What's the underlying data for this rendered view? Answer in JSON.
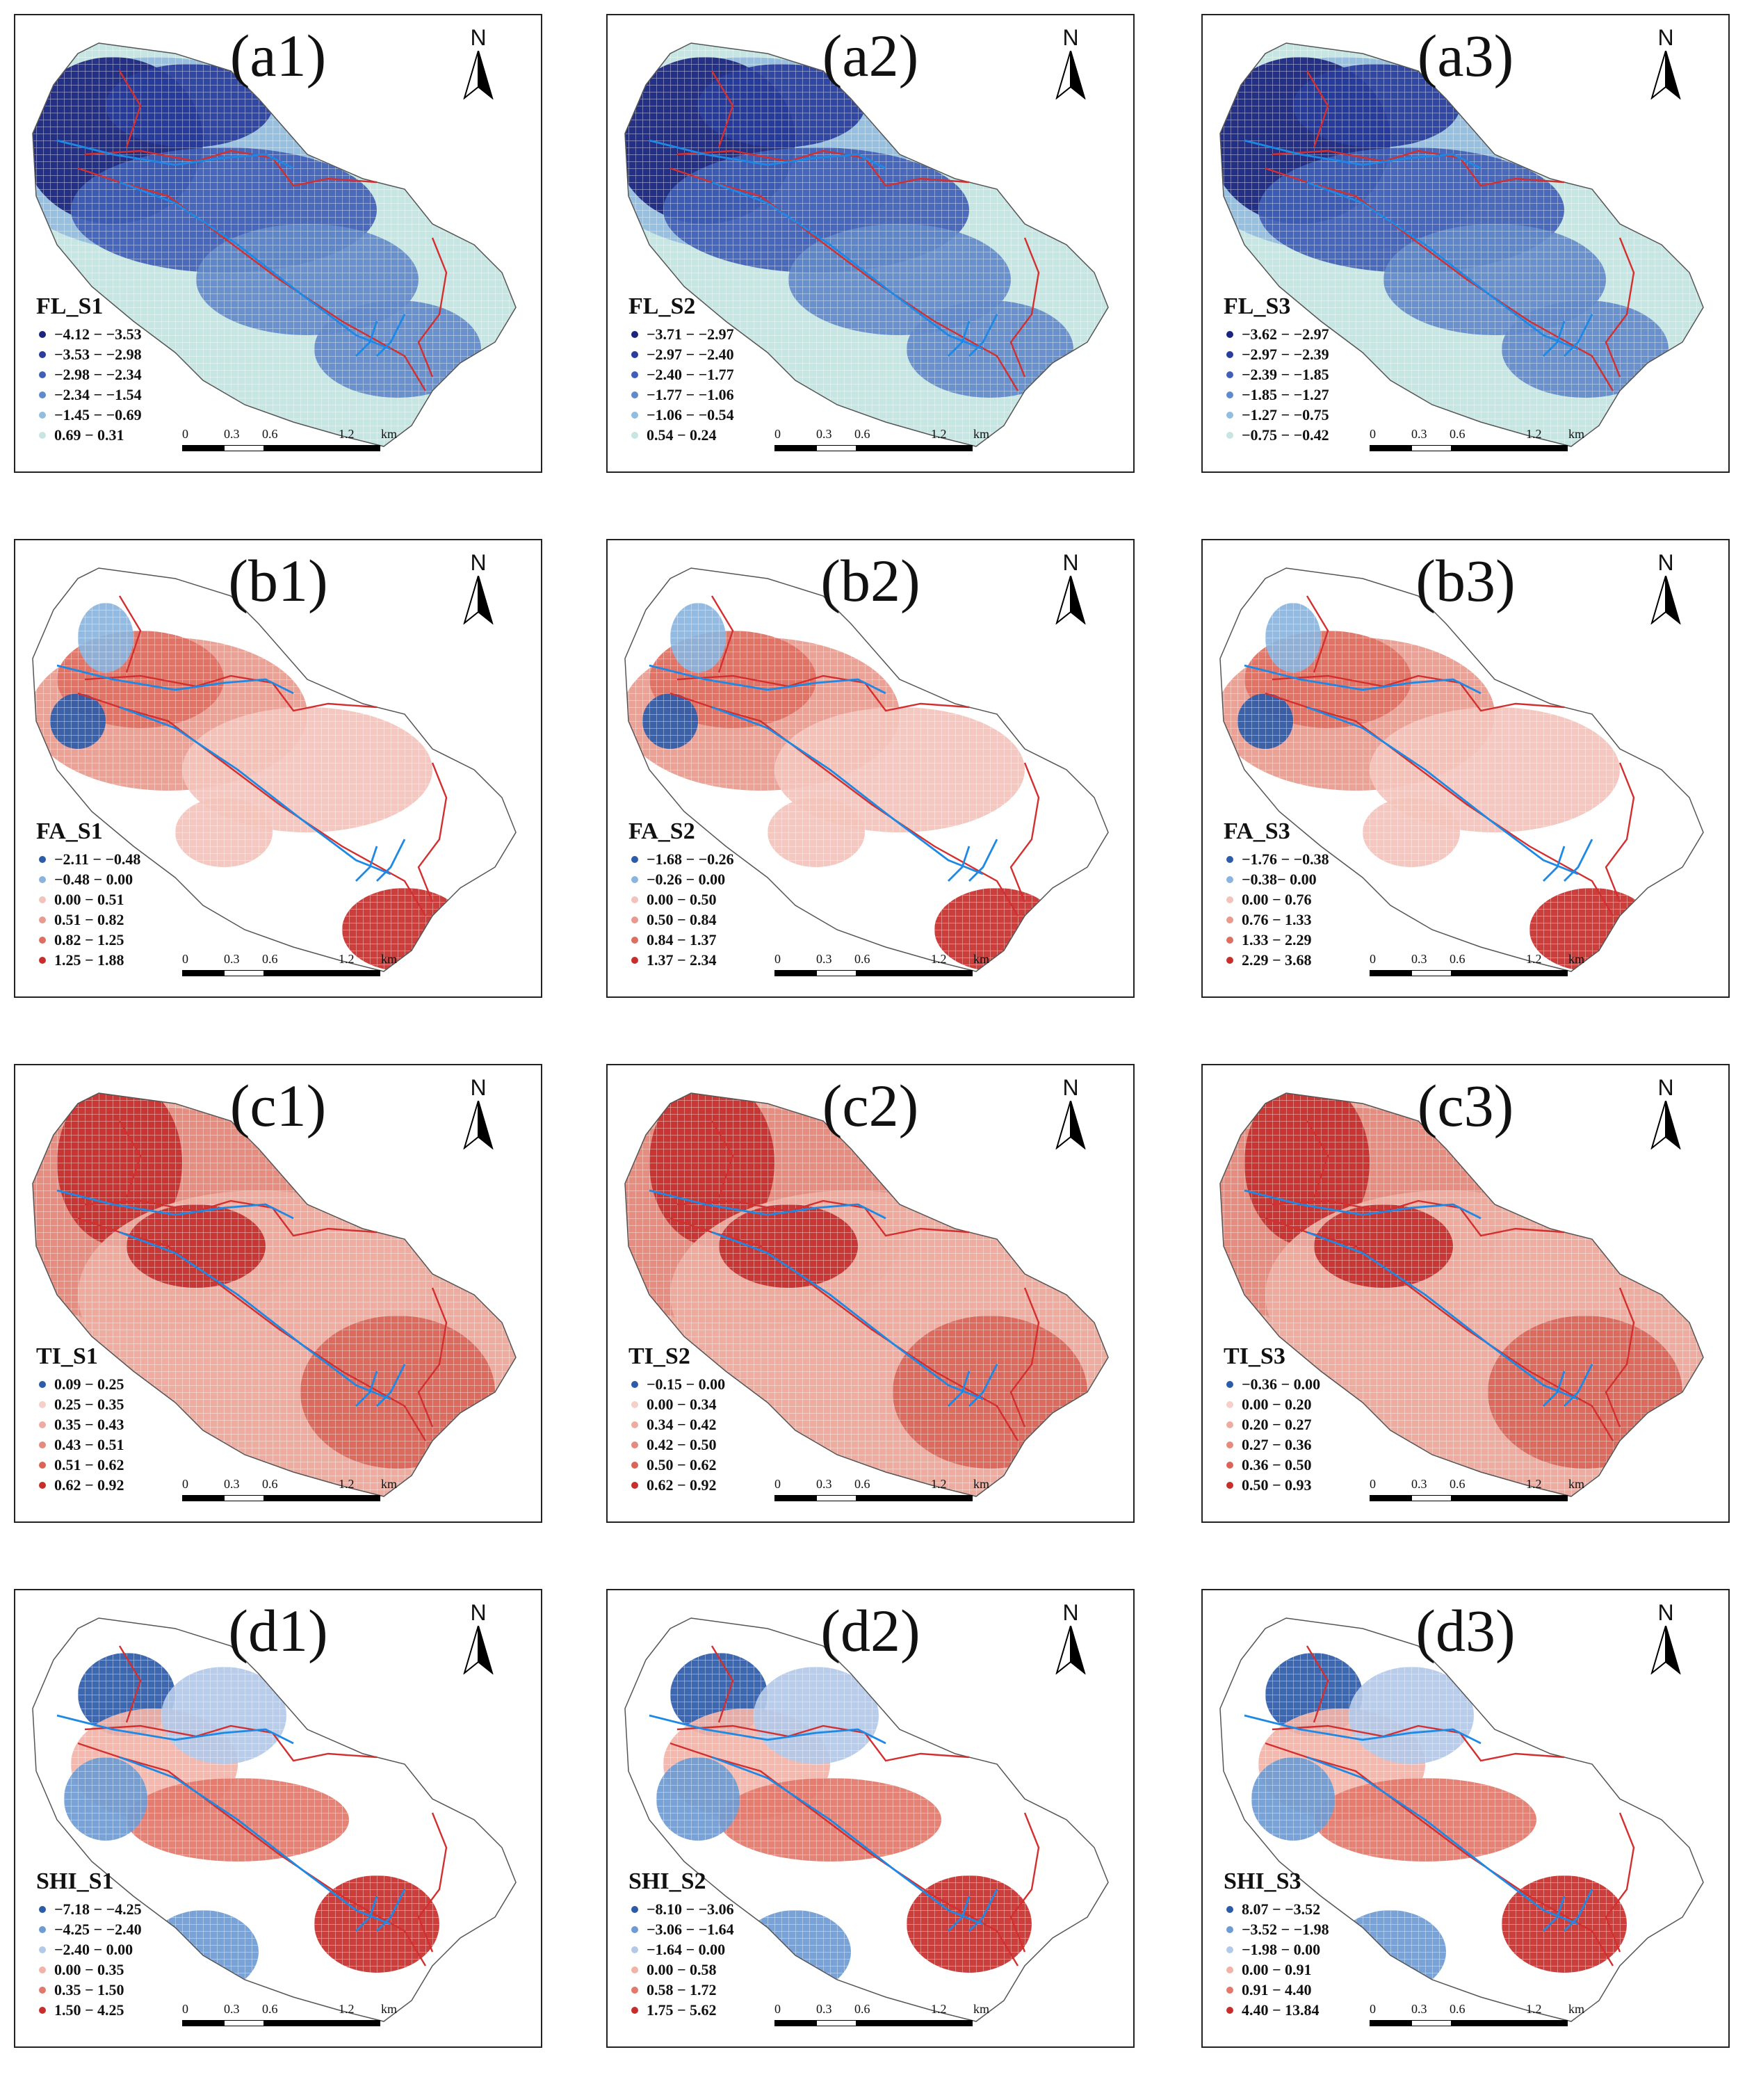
{
  "scale": {
    "ticks": [
      "0",
      "0.3",
      "0.6",
      "1.2"
    ],
    "unit": "km"
  },
  "north_label": "N",
  "colors": {
    "FL": [
      "#1a237e",
      "#283d9e",
      "#3f5fb8",
      "#5f8acb",
      "#93bde0",
      "#c6e6e3"
    ],
    "FA": [
      "#2c5ba8",
      "#8ab4de",
      "#f3c3bb",
      "#e89a8e",
      "#dd6f61",
      "#c62e2b"
    ],
    "TI": [
      "#2c5ba8",
      "#f5cfc8",
      "#eeaca0",
      "#e58a7c",
      "#da6457",
      "#c62e2b"
    ],
    "SHI": [
      "#2c5ba8",
      "#6e9bd3",
      "#b3c9e8",
      "#f2b3a7",
      "#e3776a",
      "#c62e2b"
    ],
    "river": "#1e88e5",
    "road": "#d32f2f"
  },
  "panels": [
    {
      "label": "(a1)",
      "title": "FL_S1",
      "palette": "FL",
      "items": [
        "−4.12 − −3.53",
        "−3.53 − −2.98",
        "−2.98 − −2.34",
        "−2.34 − −1.54",
        "−1.45 − −0.69",
        "0.69 − 0.31"
      ]
    },
    {
      "label": "(a2)",
      "title": "FL_S2",
      "palette": "FL",
      "items": [
        "−3.71 − −2.97",
        "−2.97 − −2.40",
        "−2.40 − −1.77",
        "−1.77 − −1.06",
        "−1.06 − −0.54",
        "0.54 − 0.24"
      ]
    },
    {
      "label": "(a3)",
      "title": "FL_S3",
      "palette": "FL",
      "items": [
        "−3.62 − −2.97",
        "−2.97 − −2.39",
        "−2.39 − −1.85",
        "−1.85 − −1.27",
        "−1.27 − −0.75",
        "−0.75 − −0.42"
      ]
    },
    {
      "label": "(b1)",
      "title": "FA_S1",
      "palette": "FA",
      "items": [
        "−2.11 − −0.48",
        "−0.48 − 0.00",
        "0.00 − 0.51",
        "0.51 − 0.82",
        "0.82 − 1.25",
        "1.25 − 1.88"
      ]
    },
    {
      "label": "(b2)",
      "title": "FA_S2",
      "palette": "FA",
      "items": [
        "−1.68 − −0.26",
        "−0.26 − 0.00",
        "0.00 − 0.50",
        "0.50 − 0.84",
        "0.84 − 1.37",
        "1.37 − 2.34"
      ]
    },
    {
      "label": "(b3)",
      "title": "FA_S3",
      "palette": "FA",
      "items": [
        "−1.76 − −0.38",
        "−0.38− 0.00",
        "0.00 − 0.76",
        "0.76 − 1.33",
        "1.33 − 2.29",
        "2.29 − 3.68"
      ]
    },
    {
      "label": "(c1)",
      "title": "TI_S1",
      "palette": "TI",
      "items": [
        "0.09 − 0.25",
        "0.25 − 0.35",
        "0.35 − 0.43",
        "0.43 − 0.51",
        "0.51 − 0.62",
        "0.62 − 0.92"
      ]
    },
    {
      "label": "(c2)",
      "title": "TI_S2",
      "palette": "TI",
      "items": [
        "−0.15 − 0.00",
        "0.00 − 0.34",
        "0.34 − 0.42",
        "0.42 − 0.50",
        "0.50 − 0.62",
        "0.62 − 0.92"
      ]
    },
    {
      "label": "(c3)",
      "title": "TI_S3",
      "palette": "TI",
      "items": [
        "−0.36 − 0.00",
        "0.00 − 0.20",
        "0.20 − 0.27",
        "0.27 − 0.36",
        "0.36 − 0.50",
        "0.50 − 0.93"
      ]
    },
    {
      "label": "(d1)",
      "title": "SHI_S1",
      "palette": "SHI",
      "items": [
        "−7.18 − −4.25",
        "−4.25 − −2.40",
        "−2.40 − 0.00",
        "0.00 − 0.35",
        "0.35 − 1.50",
        "1.50 − 4.25"
      ]
    },
    {
      "label": "(d2)",
      "title": "SHI_S2",
      "palette": "SHI",
      "items": [
        "−8.10 − −3.06",
        "−3.06 − −1.64",
        "−1.64 − 0.00",
        "0.00 − 0.58",
        "0.58 − 1.72",
        "1.75 − 5.62"
      ]
    },
    {
      "label": "(d3)",
      "title": "SHI_S3",
      "palette": "SHI",
      "items": [
        "8.07 − −3.52",
        "−3.52 − −1.98",
        "−1.98 − 0.00",
        "0.00 − 0.91",
        "0.91 − 4.40",
        "4.40 − 13.84"
      ]
    }
  ]
}
